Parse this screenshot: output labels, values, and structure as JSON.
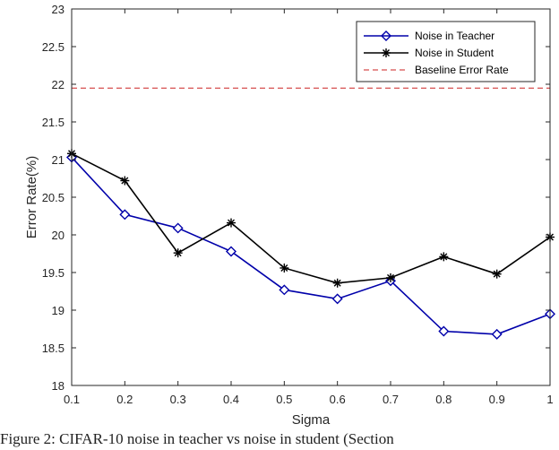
{
  "chart_data": {
    "type": "line",
    "xlabel": "Sigma",
    "ylabel": "Error Rate(%)",
    "x": [
      0.1,
      0.2,
      0.3,
      0.4,
      0.5,
      0.6,
      0.7,
      0.8,
      0.9,
      1.0
    ],
    "xticks": [
      "0.1",
      "0.2",
      "0.3",
      "0.4",
      "0.5",
      "0.6",
      "0.7",
      "0.8",
      "0.9",
      "1"
    ],
    "yticks": [
      "18",
      "18.5",
      "19",
      "19.5",
      "20",
      "20.5",
      "21",
      "21.5",
      "22",
      "22.5",
      "23"
    ],
    "xlim": [
      0.1,
      1.0
    ],
    "ylim": [
      18,
      23
    ],
    "grid": false,
    "legend_position": "top-right",
    "series": [
      {
        "name": "Noise in Teacher",
        "color": "#0000aa",
        "marker": "diamond",
        "values": [
          21.03,
          20.27,
          20.09,
          19.78,
          19.27,
          19.15,
          19.39,
          18.72,
          18.68,
          18.95
        ]
      },
      {
        "name": "Noise in Student",
        "color": "#000000",
        "marker": "asterisk",
        "values": [
          21.08,
          20.72,
          19.76,
          20.16,
          19.56,
          19.36,
          19.43,
          19.71,
          19.48,
          19.97
        ]
      }
    ],
    "reference_lines": [
      {
        "name": "Baseline Error Rate",
        "color": "#cc2222",
        "style": "dashed",
        "y": 21.95
      }
    ]
  },
  "caption": "Figure 2: CIFAR-10 noise in teacher vs noise in student (Section"
}
